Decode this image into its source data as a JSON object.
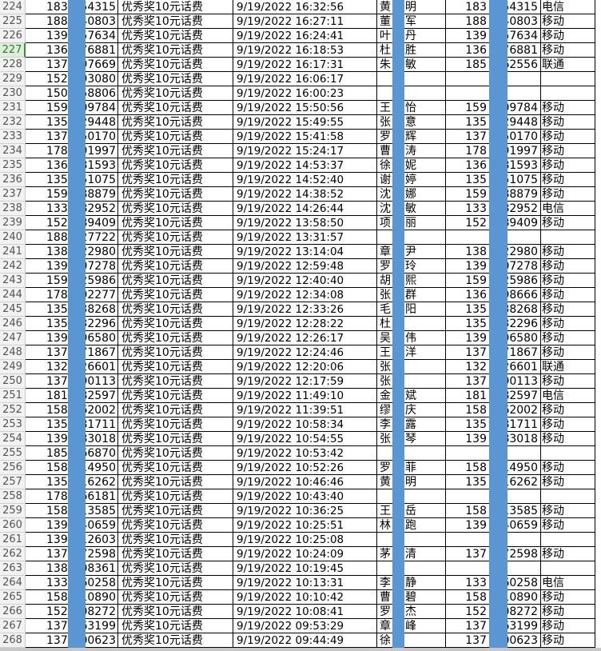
{
  "sheet": {
    "active_row": "227",
    "redaction_color": "#5a96d3",
    "award": "优秀奖10元话费",
    "rows": [
      {
        "n": "224",
        "bp": "1836",
        "bs": "54315",
        "t": "9/19/2022 16:32:56",
        "s": "黄",
        "g": "明",
        "fp": "183",
        "fs": "54315",
        "c": "电信"
      },
      {
        "n": "225",
        "bp": "1885",
        "bs": "40803",
        "t": "9/19/2022 16:27:11",
        "s": "董",
        "g": "军",
        "fp": "188",
        "fs": "40803",
        "c": "移动"
      },
      {
        "n": "226",
        "bp": "1395",
        "bs": "57634",
        "t": "9/19/2022 16:24:41",
        "s": "叶",
        "g": "丹",
        "fp": "139",
        "fs": "57634",
        "c": "移动"
      },
      {
        "n": "227",
        "bp": "1362",
        "bs": "76881",
        "t": "9/19/2022 16:18:53",
        "s": "杜",
        "g": "胜",
        "fp": "136",
        "fs": "76881",
        "c": "移动"
      },
      {
        "n": "228",
        "bp": "1372",
        "bs": "97669",
        "t": "9/19/2022 16:17:31",
        "s": "朱",
        "g": "敏",
        "fp": "185",
        "fs": "62556",
        "c": "联通"
      },
      {
        "n": "229",
        "bp": "1525",
        "bs": "93080",
        "t": "9/19/2022 16:06:17",
        "s": "",
        "g": "",
        "fp": "",
        "fs": "",
        "c": ""
      },
      {
        "n": "230",
        "bp": "1506",
        "bs": "58806",
        "t": "9/19/2022 16:00:23",
        "s": "",
        "g": "",
        "fp": "",
        "fs": "",
        "c": ""
      },
      {
        "n": "231",
        "bp": "1596",
        "bs": "09784",
        "t": "9/19/2022 15:50:56",
        "s": "王",
        "g": "怡",
        "fp": "159",
        "fs": "09784",
        "c": "移动"
      },
      {
        "n": "232",
        "bp": "1357",
        "bs": "29448",
        "t": "9/19/2022 15:49:55",
        "s": "张",
        "g": "意",
        "fp": "135",
        "fs": "29448",
        "c": "移动"
      },
      {
        "n": "233",
        "bp": "1372",
        "bs": "50170",
        "t": "9/19/2022 15:41:58",
        "s": "罗",
        "g": "辉",
        "fp": "137",
        "fs": "50170",
        "c": "移动"
      },
      {
        "n": "234",
        "bp": "1785",
        "bs": "91997",
        "t": "9/19/2022 15:24:17",
        "s": "曹",
        "g": "涛",
        "fp": "178",
        "fs": "91997",
        "c": "移动"
      },
      {
        "n": "235",
        "bp": "1362",
        "bs": "81593",
        "t": "9/19/2022 14:53:37",
        "s": "徐",
        "g": "妮",
        "fp": "136",
        "fs": "81593",
        "c": "移动"
      },
      {
        "n": "236",
        "bp": "1358",
        "bs": "51075",
        "t": "9/19/2022 14:52:40",
        "s": "谢",
        "g": "婷",
        "fp": "135",
        "fs": "51075",
        "c": "移动"
      },
      {
        "n": "237",
        "bp": "1599",
        "bs": "88879",
        "t": "9/19/2022 14:38:52",
        "s": "沈",
        "g": "娜",
        "fp": "159",
        "fs": "88879",
        "c": "移动"
      },
      {
        "n": "238",
        "bp": "1330",
        "bs": "82952",
        "t": "9/19/2022 14:26:44",
        "s": "沈",
        "g": "敏",
        "fp": "133",
        "fs": "82952",
        "c": "电信"
      },
      {
        "n": "239",
        "bp": "1520",
        "bs": "89409",
        "t": "9/19/2022 13:58:50",
        "s": "项",
        "g": "丽",
        "fp": "152",
        "fs": "89409",
        "c": "移动"
      },
      {
        "n": "240",
        "bp": "1885",
        "bs": "27722",
        "t": "9/19/2022 13:31:57",
        "s": "",
        "g": "",
        "fp": "",
        "fs": "",
        "c": ""
      },
      {
        "n": "241",
        "bp": "1385",
        "bs": "22980",
        "t": "9/19/2022 13:14:04",
        "s": "章",
        "g": "尹",
        "fp": "138",
        "fs": "22980",
        "c": "移动"
      },
      {
        "n": "242",
        "bp": "1395",
        "bs": "07278",
        "t": "9/19/2022 12:59:48",
        "s": "罗",
        "g": "玲",
        "fp": "139",
        "fs": "07278",
        "c": "移动"
      },
      {
        "n": "243",
        "bp": "1598",
        "bs": "25986",
        "t": "9/19/2022 12:40:40",
        "s": "胡",
        "g": "熙",
        "fp": "159",
        "fs": "25986",
        "c": "移动"
      },
      {
        "n": "244",
        "bp": "1789",
        "bs": "92277",
        "t": "9/19/2022 12:34:08",
        "s": "张",
        "g": "群",
        "fp": "136",
        "fs": "98666",
        "c": "移动"
      },
      {
        "n": "245",
        "bp": "1356",
        "bs": "38268",
        "t": "9/19/2022 12:33:26",
        "s": "毛",
        "g": "阳",
        "fp": "135",
        "fs": "38268",
        "c": "移动"
      },
      {
        "n": "246",
        "bp": "1358",
        "bs": "32296",
        "t": "9/19/2022 12:28:22",
        "s": "杜",
        "g": "",
        "fp": "135",
        "fs": "32296",
        "c": "移动"
      },
      {
        "n": "247",
        "bp": "1395",
        "bs": "96580",
        "t": "9/19/2022 12:26:17",
        "s": "吴",
        "g": "伟",
        "fp": "139",
        "fs": "96580",
        "c": "移动"
      },
      {
        "n": "248",
        "bp": "1372",
        "bs": "71867",
        "t": "9/19/2022 12:24:46",
        "s": "王",
        "g": "洋",
        "fp": "137",
        "fs": "71867",
        "c": "移动"
      },
      {
        "n": "249",
        "bp": "1322",
        "bs": "26601",
        "t": "9/19/2022 12:20:06",
        "s": "张",
        "g": "",
        "fp": "132",
        "fs": "26601",
        "c": "联通"
      },
      {
        "n": "250",
        "bp": "1372",
        "bs": "90113",
        "t": "9/19/2022 12:17:59",
        "s": "张",
        "g": "",
        "fp": "137",
        "fs": "90113",
        "c": "移动"
      },
      {
        "n": "251",
        "bp": "1815",
        "bs": "82597",
        "t": "9/19/2022 11:49:10",
        "s": "金",
        "g": "斌",
        "fp": "181",
        "fs": "82597",
        "c": "电信"
      },
      {
        "n": "252",
        "bp": "1586",
        "bs": "62002",
        "t": "9/19/2022 11:39:51",
        "s": "缪",
        "g": "庆",
        "fp": "158",
        "fs": "62002",
        "c": "移动"
      },
      {
        "n": "253",
        "bp": "1357",
        "bs": "81711",
        "t": "9/19/2022 10:58:34",
        "s": "李",
        "g": "露",
        "fp": "135",
        "fs": "81711",
        "c": "移动"
      },
      {
        "n": "254",
        "bp": "1395",
        "bs": "83018",
        "t": "9/19/2022 10:54:55",
        "s": "张",
        "g": "琴",
        "fp": "139",
        "fs": "83018",
        "c": "移动"
      },
      {
        "n": "255",
        "bp": "1850",
        "bs": "66870",
        "t": "9/19/2022 10:53:42",
        "s": "",
        "g": "",
        "fp": "",
        "fs": "",
        "c": ""
      },
      {
        "n": "256",
        "bp": "1582",
        "bs": "14950",
        "t": "9/19/2022 10:52:26",
        "s": "罗",
        "g": "菲",
        "fp": "158",
        "fs": "14950",
        "c": "移动"
      },
      {
        "n": "257",
        "bp": "1358",
        "bs": "16262",
        "t": "9/19/2022 10:46:46",
        "s": "黄",
        "g": "明",
        "fp": "135",
        "fs": "16262",
        "c": "移动"
      },
      {
        "n": "258",
        "bp": "1785",
        "bs": "66181",
        "t": "9/19/2022 10:43:40",
        "s": "",
        "g": "",
        "fp": "",
        "fs": "",
        "c": ""
      },
      {
        "n": "259",
        "bp": "1585",
        "bs": "13585",
        "t": "9/19/2022 10:36:25",
        "s": "王",
        "g": "岳",
        "fp": "158",
        "fs": "13585",
        "c": "移动"
      },
      {
        "n": "260",
        "bp": "1390",
        "bs": "40659",
        "t": "9/19/2022 10:25:51",
        "s": "林",
        "g": "跑",
        "fp": "139",
        "fs": "40659",
        "c": "移动"
      },
      {
        "n": "261",
        "bp": "1390",
        "bs": "12603",
        "t": "9/19/2022 10:25:08",
        "s": "",
        "g": "",
        "fp": "",
        "fs": "",
        "c": ""
      },
      {
        "n": "262",
        "bp": "1370",
        "bs": "72598",
        "t": "9/19/2022 10:24:09",
        "s": "茅",
        "g": "清",
        "fp": "137",
        "fs": "72598",
        "c": "移动"
      },
      {
        "n": "263",
        "bp": "1381",
        "bs": "08361",
        "t": "9/19/2022 10:19:45",
        "s": "",
        "g": "",
        "fp": "",
        "fs": "",
        "c": ""
      },
      {
        "n": "264",
        "bp": "1332",
        "bs": "60258",
        "t": "9/19/2022 10:13:31",
        "s": "李",
        "g": "静",
        "fp": "133",
        "fs": "60258",
        "c": "电信"
      },
      {
        "n": "265",
        "bp": "1585",
        "bs": "10890",
        "t": "9/19/2022 10:10:42",
        "s": "曹",
        "g": "碧",
        "fp": "158",
        "fs": "10890",
        "c": "移动"
      },
      {
        "n": "266",
        "bp": "1521",
        "bs": "08272",
        "t": "9/19/2022 10:08:41",
        "s": "罗",
        "g": "杰",
        "fp": "152",
        "fs": "08272",
        "c": "移动"
      },
      {
        "n": "267",
        "bp": "1370",
        "bs": "63199",
        "t": "9/19/2022 09:53:29",
        "s": "章",
        "g": "峰",
        "fp": "137",
        "fs": "63199",
        "c": "移动"
      },
      {
        "n": "268",
        "bp": "1372",
        "bs": "00623",
        "t": "9/19/2022 09:44:49",
        "s": "徐",
        "g": "",
        "fp": "137",
        "fs": "00623",
        "c": "移动"
      }
    ]
  }
}
